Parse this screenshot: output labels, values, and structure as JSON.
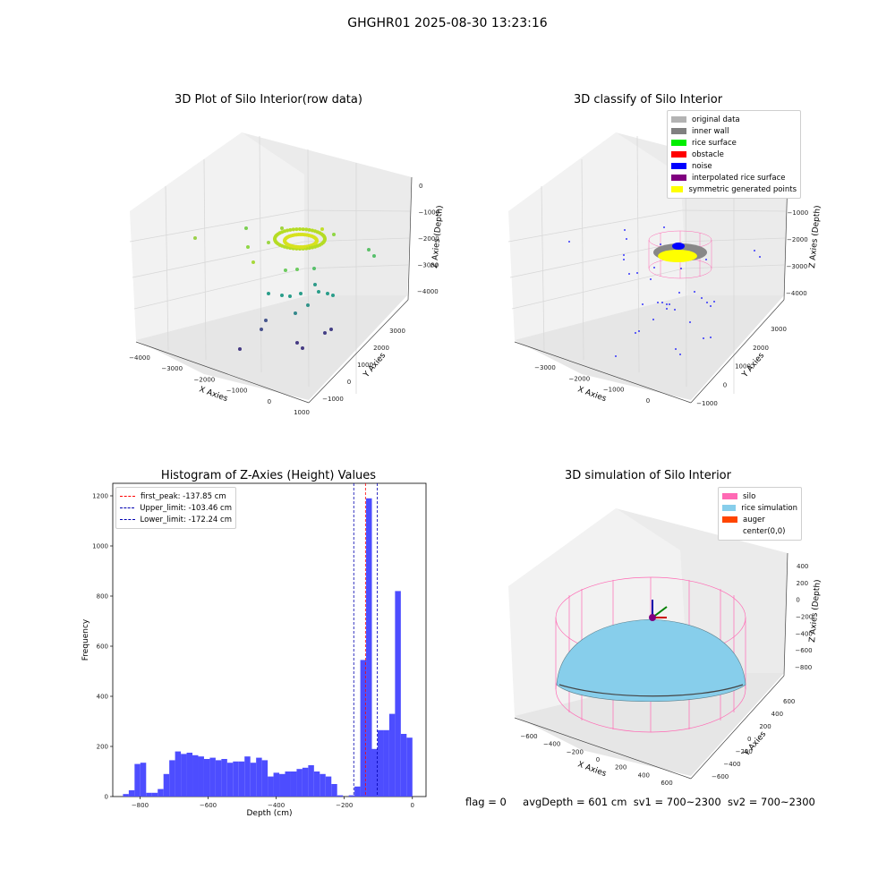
{
  "suptitle": "GHGHR01 2025-08-30 13:23:16",
  "panels": {
    "raw": {
      "title": "3D Plot of Silo Interior(row data)",
      "xlabel": "X Axies",
      "ylabel": "Y Axies",
      "zlabel": "Z Axies (Depth)",
      "xticks": [
        "-4000",
        "-3000",
        "-2000",
        "-1000",
        "0",
        "1000"
      ],
      "yticks": [
        "-1000",
        "0",
        "1000",
        "2000",
        "3000"
      ],
      "zticks": [
        "0",
        "-1000",
        "-2000",
        "-3000",
        "-4000"
      ]
    },
    "classify": {
      "title": "3D classify of Silo Interior",
      "xlabel": "X Axies",
      "ylabel": "Y Axies",
      "zlabel": "Z Axies (Depth)",
      "xticks": [
        "-3000",
        "-2000",
        "-1000",
        "0"
      ],
      "yticks": [
        "-1000",
        "0",
        "1000",
        "2000",
        "3000"
      ],
      "zticks": [
        "0",
        "-1000",
        "-2000",
        "-3000",
        "-4000"
      ],
      "legend": [
        {
          "label": "original data",
          "color": "#b3b3b3"
        },
        {
          "label": "inner wall",
          "color": "#808080"
        },
        {
          "label": "rice surface",
          "color": "#00ee00"
        },
        {
          "label": "obstacle",
          "color": "#ff0000"
        },
        {
          "label": "noise",
          "color": "#0000ff"
        },
        {
          "label": "interpolated rice surface",
          "color": "#800080"
        },
        {
          "label": "symmetric generated points",
          "color": "#ffff00"
        }
      ]
    },
    "simulation": {
      "title": "3D simulation of Silo Interior",
      "xlabel": "X Axies",
      "ylabel": "Y Axies",
      "zlabel": "Z Axies (Depth)",
      "xticks": [
        "-600",
        "-400",
        "-200",
        "0",
        "200",
        "400",
        "600"
      ],
      "yticks": [
        "-600",
        "-400",
        "-200",
        "0",
        "200",
        "400",
        "600"
      ],
      "zticks": [
        "400",
        "200",
        "0",
        "-200",
        "-400",
        "-600",
        "-800"
      ],
      "legend": [
        {
          "label": "silo",
          "color": "#ff69b4"
        },
        {
          "label": "rice simulation",
          "color": "#87ceeb"
        },
        {
          "label": "auger",
          "color": "#ff4500"
        },
        {
          "label": "center(0,0)",
          "color": ""
        }
      ]
    }
  },
  "chart_data": {
    "type": "bar",
    "title": "Histogram of Z-Axies (Height) Values",
    "xlabel": "Depth (cm)",
    "ylabel": "Frequency",
    "xlim": [
      -880,
      40
    ],
    "ylim": [
      0,
      1250
    ],
    "bin_width": 17,
    "bar_color": "#4d4dff",
    "xticks": [
      -800,
      -600,
      -400,
      -200,
      0
    ],
    "yticks": [
      0,
      200,
      400,
      600,
      800,
      1000,
      1200
    ],
    "bins": [
      [
        -850,
        10
      ],
      [
        -833,
        25
      ],
      [
        -816,
        130
      ],
      [
        -799,
        135
      ],
      [
        -782,
        15
      ],
      [
        -765,
        15
      ],
      [
        -748,
        30
      ],
      [
        -731,
        90
      ],
      [
        -714,
        145
      ],
      [
        -697,
        180
      ],
      [
        -680,
        170
      ],
      [
        -663,
        175
      ],
      [
        -646,
        165
      ],
      [
        -629,
        160
      ],
      [
        -612,
        150
      ],
      [
        -595,
        155
      ],
      [
        -578,
        145
      ],
      [
        -561,
        150
      ],
      [
        -544,
        135
      ],
      [
        -527,
        140
      ],
      [
        -510,
        140
      ],
      [
        -493,
        160
      ],
      [
        -476,
        135
      ],
      [
        -459,
        155
      ],
      [
        -442,
        145
      ],
      [
        -425,
        80
      ],
      [
        -408,
        95
      ],
      [
        -391,
        90
      ],
      [
        -374,
        100
      ],
      [
        -357,
        100
      ],
      [
        -340,
        110
      ],
      [
        -323,
        115
      ],
      [
        -306,
        125
      ],
      [
        -289,
        100
      ],
      [
        -272,
        90
      ],
      [
        -255,
        80
      ],
      [
        -238,
        50
      ],
      [
        -221,
        5
      ],
      [
        -204,
        0
      ],
      [
        -187,
        5
      ],
      [
        -170,
        40
      ],
      [
        -153,
        545
      ],
      [
        -136,
        1190
      ],
      [
        -119,
        190
      ],
      [
        -102,
        265
      ],
      [
        -85,
        265
      ],
      [
        -68,
        330
      ],
      [
        -51,
        820
      ],
      [
        -34,
        250
      ],
      [
        -17,
        235
      ]
    ],
    "vlines": [
      {
        "label": "first_peak: -137.85 cm",
        "x": -137.85,
        "color": "#ff0000"
      },
      {
        "label": "Upper_limit: -103.46 cm",
        "x": -103.46,
        "color": "#0000b0"
      },
      {
        "label": "Lower_limit: -172.24 cm",
        "x": -172.24,
        "color": "#0000b0"
      }
    ]
  },
  "footer": {
    "flag": "flag = 0",
    "avg": "avgDepth = 601 cm",
    "sv1": "sv1 = 700~2300",
    "sv2": "sv2 = 700~2300"
  }
}
